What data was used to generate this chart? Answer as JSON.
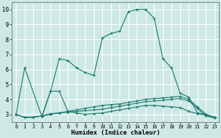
{
  "background_color": "#cde8e5",
  "grid_color": "#b0d8d4",
  "line_color": "#1a7a6e",
  "xlabel": "Humidex (Indice chaleur)",
  "ylim": [
    2.5,
    10.5
  ],
  "xlim": [
    -0.5,
    23.5
  ],
  "yticks": [
    3,
    4,
    5,
    6,
    7,
    8,
    9,
    10
  ],
  "xticks": [
    0,
    1,
    2,
    3,
    4,
    5,
    6,
    7,
    8,
    9,
    10,
    11,
    12,
    13,
    14,
    15,
    16,
    17,
    18,
    19,
    20,
    21,
    22,
    23
  ],
  "series": [
    {
      "x": [
        0,
        1,
        3,
        4,
        5,
        6,
        7,
        8,
        9,
        10,
        11,
        12,
        13,
        14,
        15,
        16,
        17,
        18,
        19,
        20,
        21,
        22,
        23
      ],
      "y": [
        3.0,
        6.1,
        2.85,
        4.55,
        6.7,
        6.6,
        6.1,
        5.8,
        5.6,
        8.1,
        8.4,
        8.55,
        9.85,
        10.0,
        10.0,
        9.4,
        6.7,
        6.1,
        4.4,
        4.15,
        3.1,
        3.0,
        2.8
      ]
    },
    {
      "x": [
        0,
        1,
        2,
        3,
        4,
        5,
        6,
        7,
        8,
        9,
        10,
        11,
        12,
        13,
        14,
        15,
        16,
        17,
        18,
        19,
        20,
        21,
        22,
        23
      ],
      "y": [
        3.0,
        2.8,
        2.82,
        2.9,
        4.55,
        4.55,
        3.2,
        3.1,
        3.0,
        3.05,
        3.1,
        3.2,
        3.3,
        3.4,
        3.5,
        3.6,
        3.6,
        3.55,
        3.5,
        3.45,
        3.2,
        3.05,
        2.95,
        2.8
      ]
    },
    {
      "x": [
        0,
        1,
        2,
        3,
        4,
        5,
        6,
        7,
        8,
        9,
        10,
        11,
        12,
        13,
        14,
        15,
        16,
        17,
        18,
        19,
        20,
        21,
        22,
        23
      ],
      "y": [
        3.0,
        2.8,
        2.82,
        2.9,
        3.0,
        3.1,
        3.2,
        3.3,
        3.4,
        3.5,
        3.6,
        3.65,
        3.7,
        3.8,
        3.9,
        4.0,
        4.05,
        4.1,
        4.15,
        4.2,
        4.0,
        3.5,
        3.0,
        2.8
      ]
    },
    {
      "x": [
        0,
        1,
        2,
        3,
        4,
        5,
        6,
        7,
        8,
        9,
        10,
        11,
        12,
        13,
        14,
        15,
        16,
        17,
        18,
        19,
        20,
        21,
        22,
        23
      ],
      "y": [
        3.0,
        2.8,
        2.82,
        2.9,
        3.05,
        3.1,
        3.15,
        3.2,
        3.25,
        3.3,
        3.35,
        3.45,
        3.55,
        3.65,
        3.75,
        3.85,
        3.9,
        3.95,
        4.0,
        4.05,
        3.9,
        3.4,
        2.9,
        2.75
      ]
    }
  ]
}
